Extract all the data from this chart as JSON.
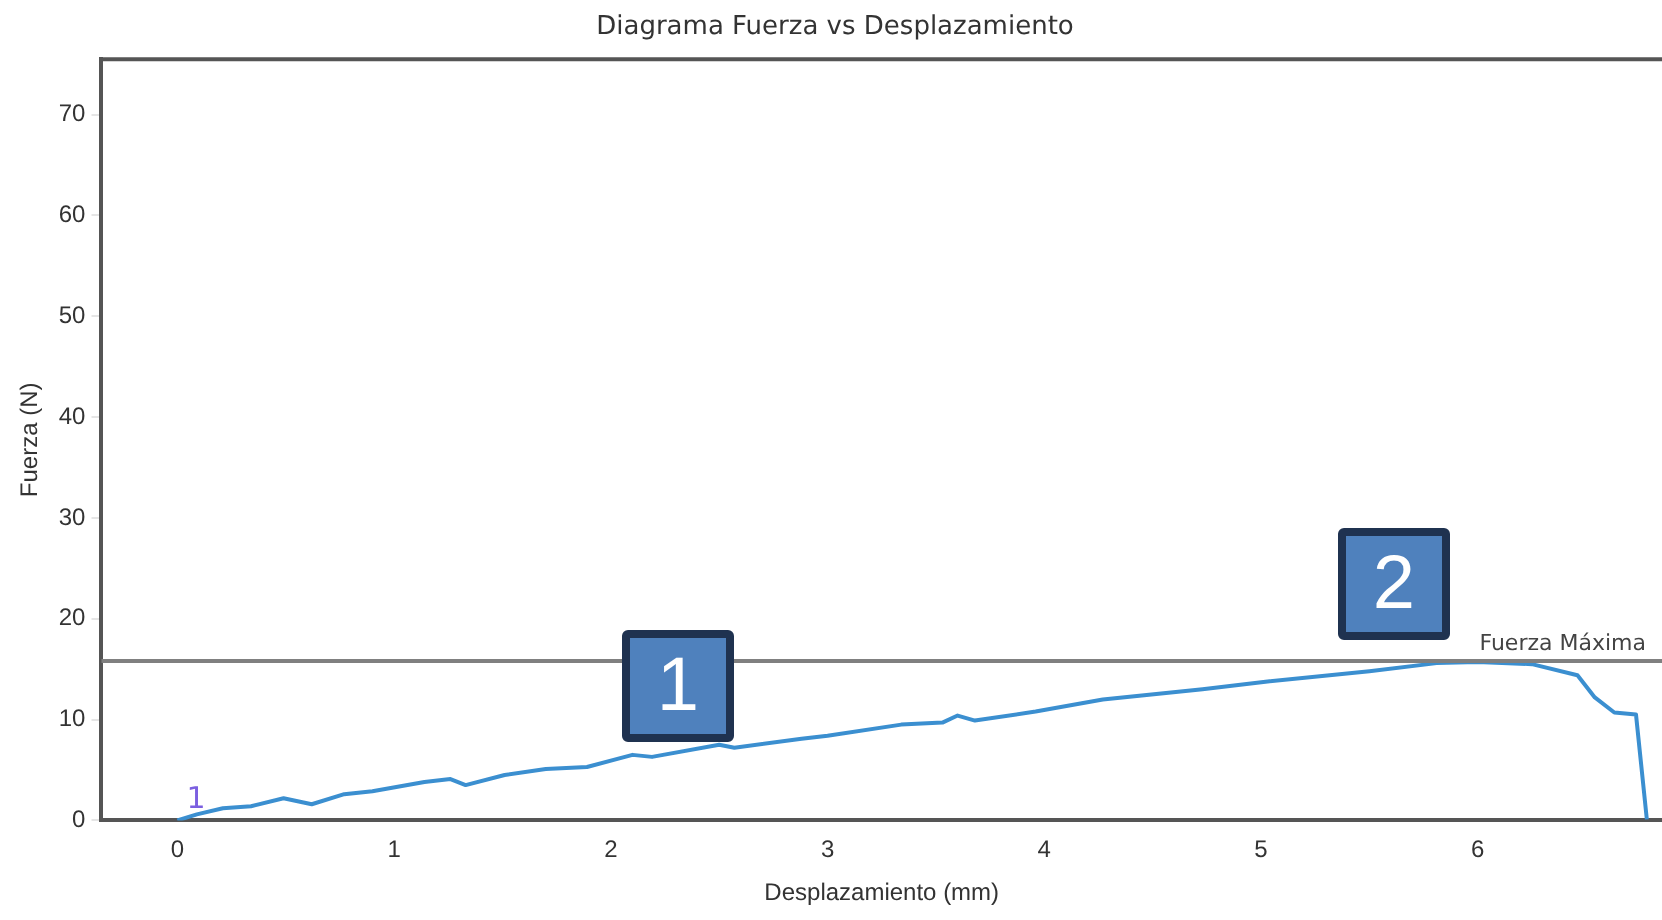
{
  "chart_data": {
    "type": "line",
    "title": "Diagrama Fuerza vs Desplazamiento",
    "xlabel": "Desplazamiento (mm)",
    "ylabel": "Fuerza (N)",
    "xlim": [
      -0.35,
      6.85
    ],
    "xticks": [
      0,
      1,
      2,
      3,
      4,
      5,
      6
    ],
    "ylim": [
      0,
      75.5
    ],
    "yticks": [
      0,
      10,
      20,
      30,
      40,
      50,
      60,
      70
    ],
    "grid": false,
    "legend": false,
    "marker": "none",
    "line_style": "solid",
    "series": [
      {
        "color": "#3b8fd0",
        "x": [
          0,
          0.09,
          0.21,
          0.34,
          0.49,
          0.62,
          0.77,
          0.9,
          1.14,
          1.26,
          1.33,
          1.51,
          1.7,
          1.89,
          2.1,
          2.19,
          2.5,
          2.57,
          2.88,
          3.0,
          3.34,
          3.53,
          3.6,
          3.68,
          3.96,
          4.27,
          4.73,
          5.04,
          5.5,
          5.81,
          6.0,
          6.25,
          6.46,
          6.54,
          6.63,
          6.73,
          6.78
        ],
        "values": [
          0,
          0.6,
          1.2,
          1.4,
          2.2,
          1.6,
          2.6,
          2.9,
          3.8,
          4.1,
          3.5,
          4.5,
          5.1,
          5.3,
          6.5,
          6.3,
          7.5,
          7.2,
          8.1,
          8.4,
          9.5,
          9.7,
          10.4,
          9.9,
          10.8,
          12.0,
          13.0,
          13.8,
          14.8,
          15.6,
          15.7,
          15.5,
          14.4,
          12.2,
          10.7,
          10.5,
          0.1
        ]
      }
    ],
    "ref_lines": [
      {
        "axis": "y",
        "value": 15.8,
        "label": "Fuerza Máxima",
        "color": "#808080",
        "line_style": "solid"
      }
    ],
    "annotations": [
      "1",
      "1",
      "2"
    ]
  }
}
